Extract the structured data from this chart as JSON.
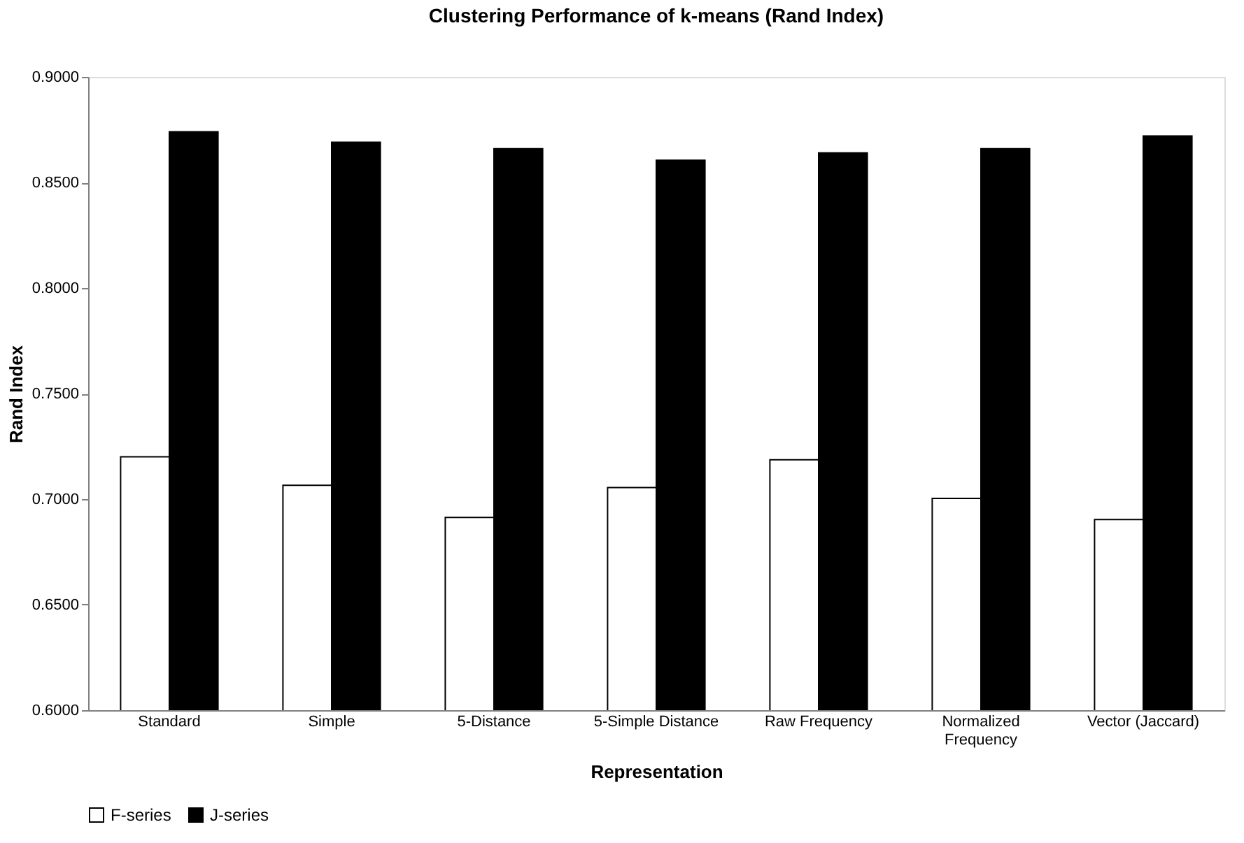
{
  "chart_data": {
    "type": "bar",
    "title": "Clustering Performance of k-means (Rand Index)",
    "xlabel": "Representation",
    "ylabel": "Rand Index",
    "categories": [
      "Standard",
      "Simple",
      "5-Distance",
      "5-Simple Distance",
      "Raw Frequency",
      "Normalized Frequency",
      "Vector (Jaccard)"
    ],
    "series": [
      {
        "name": "F-series",
        "color": "#ffffff",
        "values": [
          0.72,
          0.7065,
          0.6913,
          0.7055,
          0.7186,
          0.7003,
          0.6903
        ]
      },
      {
        "name": "J-series",
        "color": "#000000",
        "values": [
          0.874,
          0.869,
          0.866,
          0.8605,
          0.864,
          0.866,
          0.872
        ]
      }
    ],
    "ylim": [
      0.6,
      0.9
    ],
    "yticks": [
      {
        "value": 0.6,
        "label": "0.6000"
      },
      {
        "value": 0.65,
        "label": "0.6500"
      },
      {
        "value": 0.7,
        "label": "0.7000"
      },
      {
        "value": 0.75,
        "label": "0.7500"
      },
      {
        "value": 0.8,
        "label": "0.8000"
      },
      {
        "value": 0.85,
        "label": "0.8500"
      },
      {
        "value": 0.9,
        "label": "0.9000"
      }
    ],
    "grid": false,
    "legend": "bottom"
  }
}
